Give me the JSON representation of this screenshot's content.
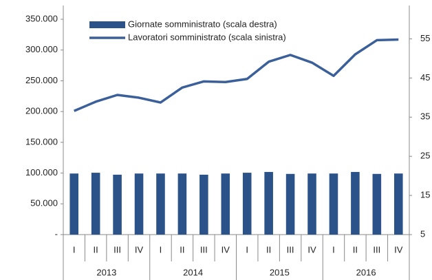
{
  "chart_data": {
    "type": "bar_line",
    "categories": [
      "I",
      "II",
      "III",
      "IV",
      "I",
      "II",
      "III",
      "IV",
      "I",
      "II",
      "III",
      "IV",
      "I",
      "II",
      "III",
      "IV"
    ],
    "groups": [
      "2013",
      "2014",
      "2015",
      "2016"
    ],
    "series": [
      {
        "name": "Giornate somministrato (scala destra)",
        "color": "#2b5289",
        "type": "bar",
        "axis": "y2",
        "values": [
          20.6,
          20.8,
          20.3,
          20.6,
          20.6,
          20.6,
          20.3,
          20.6,
          20.8,
          21.0,
          20.5,
          20.6,
          20.6,
          21.0,
          20.5,
          20.6
        ]
      },
      {
        "name": "Lavoratori somministrato (scala sinistra)",
        "color": "#3a5f99",
        "type": "line",
        "values": [
          201000,
          216000,
          227000,
          222500,
          214700,
          239000,
          249000,
          248000,
          253000,
          281000,
          292000,
          279500,
          258000,
          293000,
          316000,
          317000
        ]
      }
    ],
    "ylim": [
      0,
      350000
    ],
    "yticks": [
      {
        "value": 0,
        "label": "-"
      },
      {
        "value": 50000,
        "label": "50.000"
      },
      {
        "value": 100000,
        "label": "100.000"
      },
      {
        "value": 150000,
        "label": "150.000"
      },
      {
        "value": 200000,
        "label": "200.000"
      },
      {
        "value": 250000,
        "label": "250.000"
      },
      {
        "value": 300000,
        "label": "300.000"
      },
      {
        "value": 350000,
        "label": "350.000"
      }
    ],
    "y2lim": [
      5,
      60
    ],
    "y2ticks": [
      5,
      15,
      25,
      35,
      45,
      55
    ]
  }
}
